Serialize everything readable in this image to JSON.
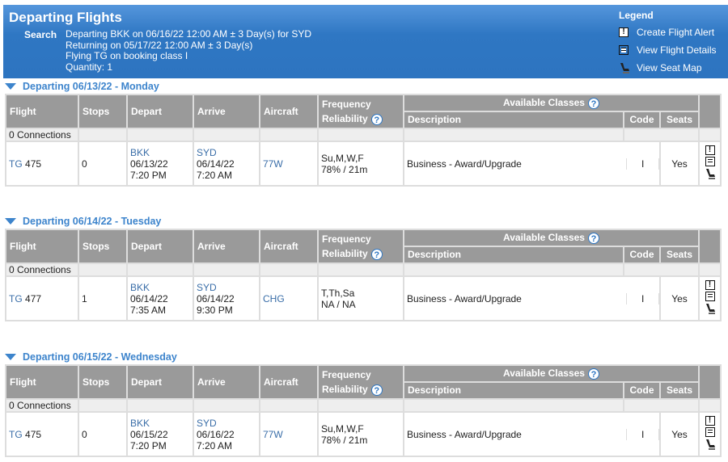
{
  "header": {
    "title": "Departing Flights",
    "search_label": "Search",
    "search_lines": [
      "Departing BKK on 06/16/22 12:00 AM ± 3 Day(s) for SYD",
      "Returning on 05/17/22 12:00 AM ± 3 Day(s)",
      "Flying TG on booking class I",
      "Quantity: 1"
    ]
  },
  "legend": {
    "title": "Legend",
    "items": [
      {
        "icon": "alert-icon",
        "label": "Create Flight Alert"
      },
      {
        "icon": "details-icon",
        "label": "View Flight Details"
      },
      {
        "icon": "seat-icon",
        "label": "View Seat Map"
      }
    ]
  },
  "columns": {
    "flight": "Flight",
    "stops": "Stops",
    "depart": "Depart",
    "arrive": "Arrive",
    "aircraft": "Aircraft",
    "frequency": "Frequency",
    "reliability": "Reliability",
    "available": "Available Classes",
    "description": "Description",
    "code": "Code",
    "seats": "Seats",
    "help": "?"
  },
  "colors": {
    "header_blue": "#2f77c3",
    "link": "#3a6ea8",
    "section_title": "#3d84cc",
    "table_header": "#9a9a9a"
  },
  "sections": [
    {
      "title": "Departing 06/13/22 - Monday",
      "connections": "0 Connections",
      "airline": "TG",
      "number": "475",
      "stops": "0",
      "dep_airport": "BKK",
      "dep_date": "06/13/22",
      "dep_time": "7:20 PM",
      "arr_airport": "SYD",
      "arr_date": "06/14/22",
      "arr_time": "7:20 AM",
      "aircraft": "77W",
      "frequency": "Su,M,W,F",
      "reliability": "78% / 21m",
      "description": "Business - Award/Upgrade",
      "code": "I",
      "seats": "Yes"
    },
    {
      "title": "Departing 06/14/22 - Tuesday",
      "connections": "0 Connections",
      "airline": "TG",
      "number": "477",
      "stops": "1",
      "dep_airport": "BKK",
      "dep_date": "06/14/22",
      "dep_time": "7:35 AM",
      "arr_airport": "SYD",
      "arr_date": "06/14/22",
      "arr_time": "9:30 PM",
      "aircraft": "CHG",
      "frequency": "T,Th,Sa",
      "reliability": "NA / NA",
      "description": "Business - Award/Upgrade",
      "code": "I",
      "seats": "Yes"
    },
    {
      "title": "Departing 06/15/22 - Wednesday",
      "connections": "0 Connections",
      "airline": "TG",
      "number": "475",
      "stops": "0",
      "dep_airport": "BKK",
      "dep_date": "06/15/22",
      "dep_time": "7:20 PM",
      "arr_airport": "SYD",
      "arr_date": "06/16/22",
      "arr_time": "7:20 AM",
      "aircraft": "77W",
      "frequency": "Su,M,W,F",
      "reliability": "78% / 21m",
      "description": "Business - Award/Upgrade",
      "code": "I",
      "seats": "Yes"
    }
  ]
}
